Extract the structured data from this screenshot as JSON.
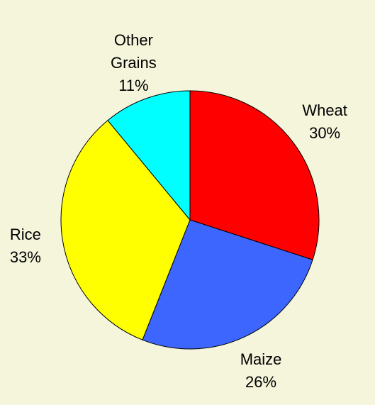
{
  "chart_data": {
    "type": "pie",
    "categories": [
      "Wheat",
      "Maize",
      "Rice",
      "Other Grains"
    ],
    "values": [
      30,
      26,
      33,
      11
    ],
    "value_labels": [
      "30%",
      "26%",
      "33%",
      "11%"
    ],
    "colors": [
      "#ff0000",
      "#3d66ff",
      "#ffff00",
      "#00ffff"
    ]
  }
}
